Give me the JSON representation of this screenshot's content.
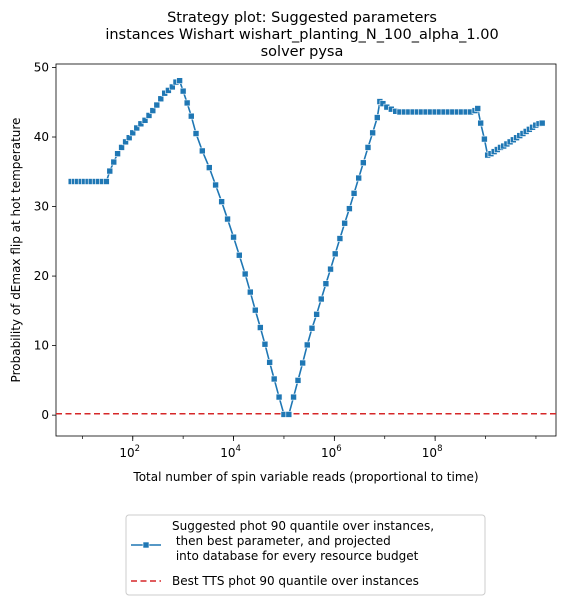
{
  "chart_data": {
    "type": "line",
    "title": [
      "Strategy plot: Suggested parameters",
      "instances Wishart wishart_planting_N_100_alpha_1.00",
      "solver pysa"
    ],
    "xlabel": "Total number of spin variable reads (proportional to time)",
    "ylabel": "Probability of dEmax flip at hot temperature",
    "xscale": "log",
    "xlim": [
      3.0,
      25000000000.0
    ],
    "ylim": [
      -3,
      50.5
    ],
    "grid": false,
    "legend_placement": "below",
    "xticks": [
      {
        "value": 100,
        "base": "10",
        "exp": "2"
      },
      {
        "value": 10000,
        "base": "10",
        "exp": "4"
      },
      {
        "value": 1000000,
        "base": "10",
        "exp": "6"
      },
      {
        "value": 100000000,
        "base": "10",
        "exp": "8"
      }
    ],
    "yticks": [
      0,
      10,
      20,
      30,
      40,
      50
    ],
    "series": [
      {
        "name": "Suggested phot 90 quantile over instances,\n then best parameter, and projected\n into database for every resource budget",
        "color": "#1f77b4",
        "marker": "square",
        "linestyle": "solid",
        "points": [
          [
            6,
            33.6
          ],
          [
            7,
            33.6
          ],
          [
            8,
            33.6
          ],
          [
            9.5,
            33.6
          ],
          [
            11,
            33.6
          ],
          [
            13,
            33.6
          ],
          [
            15,
            33.6
          ],
          [
            18,
            33.6
          ],
          [
            21,
            33.6
          ],
          [
            25,
            33.6
          ],
          [
            30,
            33.6
          ],
          [
            35,
            35.1
          ],
          [
            42,
            36.4
          ],
          [
            50,
            37.6
          ],
          [
            60,
            38.5
          ],
          [
            72,
            39.3
          ],
          [
            85,
            39.9
          ],
          [
            100,
            40.6
          ],
          [
            120,
            41.3
          ],
          [
            145,
            41.9
          ],
          [
            175,
            42.4
          ],
          [
            210,
            43.1
          ],
          [
            250,
            43.8
          ],
          [
            300,
            44.6
          ],
          [
            360,
            45.5
          ],
          [
            430,
            46.3
          ],
          [
            510,
            46.7
          ],
          [
            610,
            47.2
          ],
          [
            720,
            47.9
          ],
          [
            850,
            48.1
          ],
          [
            1000,
            46.6
          ],
          [
            1200,
            44.9
          ],
          [
            1450,
            43.0
          ],
          [
            1800,
            40.5
          ],
          [
            2400,
            38.0
          ],
          [
            3300,
            35.6
          ],
          [
            4400,
            33.1
          ],
          [
            5800,
            30.7
          ],
          [
            7600,
            28.2
          ],
          [
            10000,
            25.6
          ],
          [
            13000,
            23.0
          ],
          [
            17000,
            20.3
          ],
          [
            21500,
            17.7
          ],
          [
            27000,
            15.1
          ],
          [
            34000,
            12.6
          ],
          [
            42000,
            10.2
          ],
          [
            52000,
            7.6
          ],
          [
            64000,
            5.2
          ],
          [
            80000,
            2.6
          ],
          [
            100000,
            0.1
          ],
          [
            125000,
            0.1
          ],
          [
            155000,
            2.6
          ],
          [
            190000,
            5.0
          ],
          [
            235000,
            7.5
          ],
          [
            290000,
            10.1
          ],
          [
            360000,
            12.5
          ],
          [
            445000,
            14.5
          ],
          [
            550000,
            16.7
          ],
          [
            680000,
            18.9
          ],
          [
            840000,
            21.0
          ],
          [
            1040000,
            23.2
          ],
          [
            1290000,
            25.4
          ],
          [
            1600000,
            27.6
          ],
          [
            1990000,
            29.7
          ],
          [
            2460000,
            31.9
          ],
          [
            3040000,
            34.1
          ],
          [
            3760000,
            36.3
          ],
          [
            4650000,
            38.5
          ],
          [
            5750000,
            40.6
          ],
          [
            7110000,
            42.8
          ],
          [
            8000000,
            45.1
          ],
          [
            9200000,
            44.8
          ],
          [
            11000000,
            44.3
          ],
          [
            13500000,
            44.0
          ],
          [
            16500000,
            43.7
          ],
          [
            20000000,
            43.6
          ],
          [
            24500000,
            43.6
          ],
          [
            30000000,
            43.6
          ],
          [
            36500000,
            43.6
          ],
          [
            44500000,
            43.6
          ],
          [
            54000000,
            43.6
          ],
          [
            66000000,
            43.6
          ],
          [
            81000000,
            43.6
          ],
          [
            100000000,
            43.6
          ],
          [
            122000000,
            43.6
          ],
          [
            150000000,
            43.6
          ],
          [
            183000000,
            43.6
          ],
          [
            224000000,
            43.6
          ],
          [
            275000000,
            43.6
          ],
          [
            336000000,
            43.6
          ],
          [
            412000000,
            43.6
          ],
          [
            504000000,
            43.6
          ],
          [
            617000000,
            43.8
          ],
          [
            700000000,
            44.1
          ],
          [
            800000000,
            42.0
          ],
          [
            950000000,
            39.7
          ],
          [
            1100000000,
            37.4
          ],
          [
            1280000000,
            37.6
          ],
          [
            1480000000,
            37.9
          ],
          [
            1710000000,
            38.2
          ],
          [
            1980000000,
            38.5
          ],
          [
            2290000000,
            38.7
          ],
          [
            2650000000,
            39.0
          ],
          [
            3070000000,
            39.3
          ],
          [
            3560000000,
            39.6
          ],
          [
            4120000000,
            39.9
          ],
          [
            4770000000,
            40.2
          ],
          [
            5520000000,
            40.5
          ],
          [
            6390000000,
            40.8
          ],
          [
            7400000000,
            41.1
          ],
          [
            8560000000,
            41.4
          ],
          [
            9910000000,
            41.7
          ],
          [
            11500000000,
            41.9
          ],
          [
            13300000000,
            42.0
          ]
        ]
      },
      {
        "name": "Best TTS phot 90 quantile over instances",
        "color": "#d62728",
        "linestyle": "dashed",
        "y_constant": 0.2
      }
    ]
  }
}
